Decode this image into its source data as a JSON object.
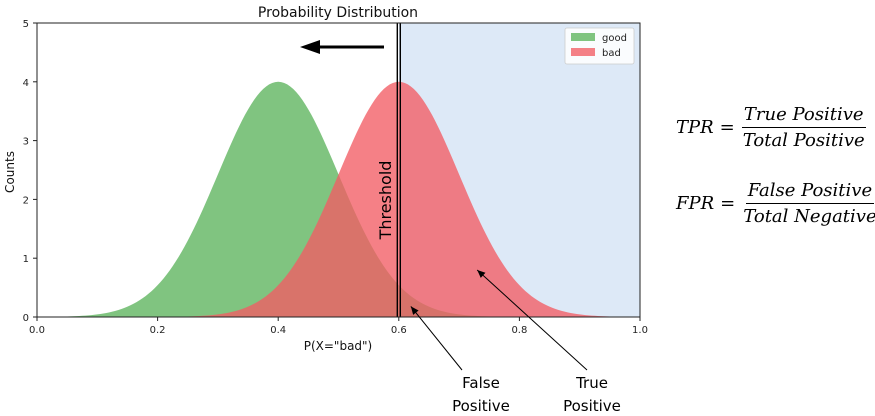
{
  "chart_data": {
    "type": "area",
    "title": "Probability Distribution",
    "xlabel": "P(X=\"bad\")",
    "ylabel": "Counts",
    "xlim": [
      0.0,
      1.0
    ],
    "ylim": [
      0,
      5
    ],
    "xticks": [
      "0.0",
      "0.2",
      "0.4",
      "0.6",
      "0.8",
      "1.0"
    ],
    "yticks": [
      "0",
      "1",
      "2",
      "3",
      "4",
      "5"
    ],
    "grid": false,
    "legend_position": "top-right",
    "series": [
      {
        "name": "good",
        "color": "#5cb35c",
        "peak_x": 0.4,
        "peak_y": 4.0,
        "spread": 0.1,
        "x": [
          0.0,
          0.1,
          0.2,
          0.3,
          0.4,
          0.5,
          0.6,
          0.7,
          0.8,
          0.9,
          1.0
        ],
        "y": [
          0.01,
          0.11,
          0.54,
          2.42,
          4.0,
          2.42,
          0.54,
          0.04,
          0.0,
          0.0,
          0.0
        ]
      },
      {
        "name": "bad",
        "color": "#f25c64",
        "peak_x": 0.6,
        "peak_y": 4.0,
        "spread": 0.1,
        "x": [
          0.0,
          0.1,
          0.2,
          0.3,
          0.4,
          0.5,
          0.6,
          0.7,
          0.8,
          0.9,
          1.0
        ],
        "y": [
          0.0,
          0.0,
          0.0,
          0.04,
          0.54,
          2.42,
          4.0,
          2.42,
          0.54,
          0.04,
          0.0
        ]
      }
    ],
    "threshold": {
      "x": 0.6,
      "label": "Threshold"
    },
    "shaded_region": {
      "from": 0.6,
      "to": 1.0,
      "color": "#dde9f7"
    },
    "annotations": [
      {
        "text": [
          "False",
          "Positive"
        ],
        "points_to": [
          0.62,
          0.18
        ]
      },
      {
        "text": [
          "True",
          "Positive"
        ],
        "points_to": [
          0.73,
          0.8
        ]
      }
    ]
  },
  "formulas": [
    {
      "lhs": "TPR",
      "numerator": "True Positive",
      "denominator": "Total Positive"
    },
    {
      "lhs": "FPR",
      "numerator": "False Positive",
      "denominator": "Total Negative"
    }
  ],
  "colors": {
    "arrow": "#000000",
    "threshold_line": "#000000"
  }
}
